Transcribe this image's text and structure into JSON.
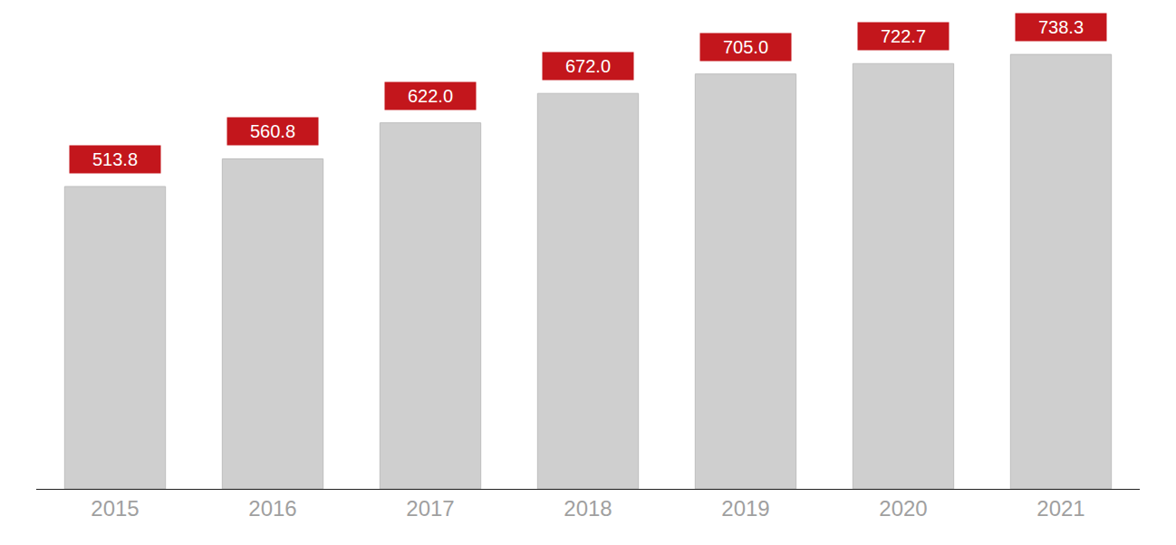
{
  "chart_data": {
    "type": "bar",
    "categories": [
      "2015",
      "2016",
      "2017",
      "2018",
      "2019",
      "2020",
      "2021"
    ],
    "values": [
      513.8,
      560.8,
      622.0,
      672.0,
      705.0,
      722.7,
      738.3
    ],
    "value_labels": [
      "513.8",
      "560.8",
      "622.0",
      "672.0",
      "705.0",
      "722.7",
      "738.3"
    ],
    "data_labels": true,
    "color": "#cfcfcf",
    "ylim": [
      0,
      800
    ],
    "tick_labels": "x",
    "grid": false
  }
}
